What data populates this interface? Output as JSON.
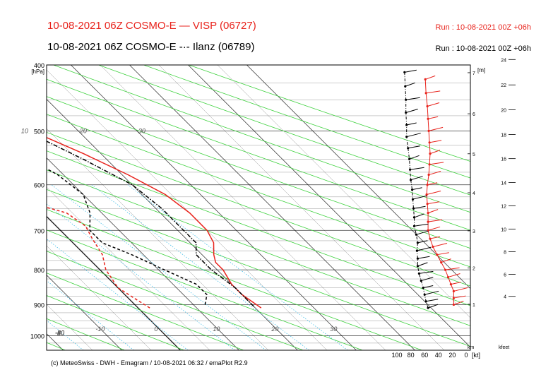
{
  "header": {
    "title_red": "10-08-2021 06Z COSMO-E — VISP (06727)",
    "title_black": "10-08-2021 06Z COSMO-E -·- Ilanz (06789)",
    "run_red": "Run : 10-08-2021 00Z +06h",
    "run_black": "Run : 10-08-2021 00Z +06h"
  },
  "footer": "(c) MeteoSwiss - DWH - Emagram / 10-08-2021 06:32 / emaPlot R2.9",
  "colors": {
    "visp": "#e8231c",
    "ilanz": "#000000",
    "dry_adiabat": "#3fd23f",
    "mixing_ratio": "#49c0e8",
    "isotherm": "#000000"
  },
  "chart_data": {
    "type": "line",
    "chart_kind": "emagram",
    "y_scale": "log",
    "ylabel": "[hPa]",
    "y_ticks": [
      "400",
      "500",
      "600",
      "700",
      "800",
      "900",
      "1000"
    ],
    "ylim": [
      1000,
      400
    ],
    "x_ticks": [
      "-10",
      "0",
      "10",
      "20",
      "30"
    ],
    "isotherm_labels_left": [
      "-60",
      "-50",
      "-40",
      "-30",
      "-20"
    ],
    "isotherm_labels_top": [
      "-60",
      "-50",
      "-40",
      "-30",
      "-20"
    ],
    "isotherm_labels_inner": [
      "10",
      "20",
      "30"
    ],
    "wind_axis": {
      "label": "[kt]",
      "ticks": [
        "100",
        "80",
        "60",
        "40",
        "20",
        "0"
      ]
    },
    "height_km": {
      "label": "[m]",
      "unit": "km",
      "ticks": [
        "1",
        "2",
        "3",
        "4",
        "5",
        "6",
        "7"
      ]
    },
    "height_kfeet": {
      "label": "kfeet",
      "ticks": [
        "4",
        "6",
        "8",
        "10",
        "12",
        "14",
        "16",
        "18",
        "20",
        "22",
        "24"
      ]
    },
    "series": [
      {
        "name": "VISP (06727)",
        "variable": "temperature",
        "style": "solid",
        "color": "#e8231c",
        "points": [
          [
            910,
            21
          ],
          [
            870,
            20
          ],
          [
            840,
            20
          ],
          [
            800,
            21
          ],
          [
            780,
            21
          ],
          [
            760,
            22
          ],
          [
            730,
            24
          ],
          [
            700,
            25
          ],
          [
            660,
            25
          ],
          [
            620,
            24
          ],
          [
            580,
            21
          ],
          [
            540,
            17
          ],
          [
            500,
            12
          ],
          [
            470,
            7
          ],
          [
            440,
            2
          ],
          [
            410,
            -4
          ]
        ]
      },
      {
        "name": "VISP (06727)",
        "variable": "dew_point",
        "style": "dashed",
        "color": "#e8231c",
        "points": [
          [
            910,
            2
          ],
          [
            880,
            1
          ],
          [
            850,
            0
          ],
          [
            800,
            1
          ],
          [
            760,
            3
          ],
          [
            720,
            4
          ],
          [
            690,
            5
          ],
          [
            660,
            4
          ],
          [
            630,
            -2
          ],
          [
            600,
            -8
          ],
          [
            570,
            -13
          ],
          [
            530,
            -15
          ],
          [
            500,
            -14
          ],
          [
            470,
            -15
          ],
          [
            450,
            -20
          ],
          [
            430,
            -28
          ],
          [
            400,
            -34
          ]
        ]
      },
      {
        "name": "Ilanz (06789)",
        "variable": "temperature",
        "style": "dashdot",
        "color": "#000000",
        "points": [
          [
            905,
            20
          ],
          [
            880,
            20
          ],
          [
            850,
            20
          ],
          [
            800,
            19
          ],
          [
            760,
            19
          ],
          [
            730,
            21
          ],
          [
            700,
            21
          ],
          [
            650,
            21
          ],
          [
            600,
            20
          ],
          [
            550,
            16
          ],
          [
            500,
            11
          ],
          [
            470,
            6
          ],
          [
            440,
            1
          ],
          [
            410,
            -5
          ]
        ]
      },
      {
        "name": "Ilanz (06789)",
        "variable": "dew_point",
        "style": "dashed",
        "color": "#000000",
        "points": [
          [
            900,
            12
          ],
          [
            870,
            14
          ],
          [
            840,
            14
          ],
          [
            800,
            11
          ],
          [
            760,
            8
          ],
          [
            730,
            5
          ],
          [
            700,
            5
          ],
          [
            660,
            8
          ],
          [
            620,
            10
          ],
          [
            580,
            9
          ],
          [
            540,
            6
          ],
          [
            500,
            2
          ],
          [
            470,
            -4
          ],
          [
            450,
            -11
          ],
          [
            430,
            -21
          ],
          [
            410,
            -27
          ],
          [
            400,
            -30
          ]
        ]
      }
    ],
    "wind_profile": {
      "visp": {
        "levels_hPa": [
          900,
          880,
          860,
          840,
          820,
          800,
          780,
          760,
          740,
          720,
          700,
          680,
          660,
          640,
          620,
          600,
          580,
          560,
          540,
          520,
          500,
          480,
          460,
          440,
          420
        ],
        "speed_kt": [
          18,
          18,
          18,
          22,
          26,
          30,
          36,
          42,
          48,
          52,
          55,
          55,
          55,
          56,
          57,
          56,
          54,
          53,
          52,
          53,
          54,
          55,
          56,
          58,
          59
        ]
      },
      "ilanz": {
        "levels_hPa": [
          910,
          890,
          870,
          850,
          830,
          810,
          790,
          770,
          750,
          730,
          710,
          690,
          670,
          650,
          630,
          610,
          590,
          570,
          550,
          530,
          510,
          490,
          470,
          450,
          430,
          410
        ],
        "speed_kt": [
          55,
          58,
          60,
          62,
          65,
          68,
          70,
          70,
          71,
          70,
          72,
          75,
          75,
          76,
          77,
          78,
          80,
          81,
          82,
          84,
          86,
          86,
          87,
          87,
          88,
          89
        ]
      }
    }
  }
}
